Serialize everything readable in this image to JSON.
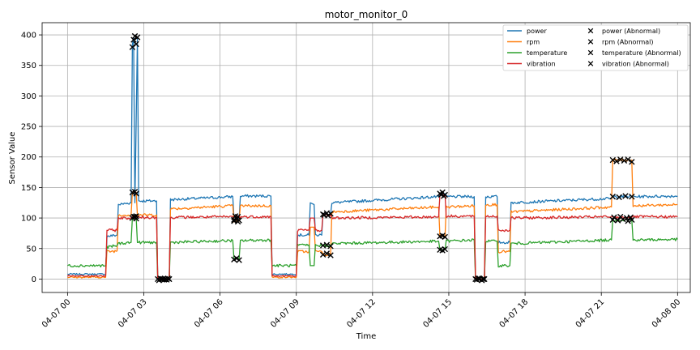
{
  "chart_data": {
    "type": "line",
    "title": "motor_monitor_0",
    "xlabel": "Time",
    "ylabel": "Sensor Value",
    "xlim": [
      -1.0,
      24.5
    ],
    "ylim": [
      -22,
      420
    ],
    "grid": true,
    "legend_placement": "top-right",
    "x_ticks": [
      {
        "value": 0,
        "label": "04-07 00"
      },
      {
        "value": 3,
        "label": "04-07 03"
      },
      {
        "value": 6,
        "label": "04-07 06"
      },
      {
        "value": 9,
        "label": "04-07 09"
      },
      {
        "value": 12,
        "label": "04-07 12"
      },
      {
        "value": 15,
        "label": "04-07 15"
      },
      {
        "value": 18,
        "label": "04-07 18"
      },
      {
        "value": 21,
        "label": "04-07 21"
      },
      {
        "value": 24,
        "label": "04-08 00"
      }
    ],
    "y_ticks": [
      0,
      50,
      100,
      150,
      200,
      250,
      300,
      350,
      400
    ],
    "series": [
      {
        "name": "power",
        "color": "#1f77b4",
        "points": [
          [
            0,
            8
          ],
          [
            1.5,
            8
          ],
          [
            1.55,
            70
          ],
          [
            1.95,
            72
          ],
          [
            2.0,
            122
          ],
          [
            2.5,
            125
          ],
          [
            2.55,
            385
          ],
          [
            2.6,
            395
          ],
          [
            2.65,
            125
          ],
          [
            2.75,
            395
          ],
          [
            2.8,
            128
          ],
          [
            3.5,
            128
          ],
          [
            3.55,
            0
          ],
          [
            4.0,
            0
          ],
          [
            4.05,
            130
          ],
          [
            6.5,
            135
          ],
          [
            6.55,
            98
          ],
          [
            6.75,
            98
          ],
          [
            6.8,
            136
          ],
          [
            8.0,
            136
          ],
          [
            8.05,
            8
          ],
          [
            9.0,
            8
          ],
          [
            9.05,
            72
          ],
          [
            9.5,
            72
          ],
          [
            9.55,
            125
          ],
          [
            9.7,
            122
          ],
          [
            9.75,
            72
          ],
          [
            10.0,
            72
          ],
          [
            10.05,
            107
          ],
          [
            10.35,
            107
          ],
          [
            10.4,
            125
          ],
          [
            14.6,
            135
          ],
          [
            14.65,
            140
          ],
          [
            14.85,
            140
          ],
          [
            14.9,
            135
          ],
          [
            16.0,
            135
          ],
          [
            16.05,
            0
          ],
          [
            16.4,
            0
          ],
          [
            16.45,
            135
          ],
          [
            16.9,
            135
          ],
          [
            16.95,
            60
          ],
          [
            17.4,
            60
          ],
          [
            17.45,
            125
          ],
          [
            21.4,
            132
          ],
          [
            21.45,
            135
          ],
          [
            22.2,
            135
          ],
          [
            22.25,
            135
          ],
          [
            24,
            136
          ]
        ]
      },
      {
        "name": "rpm",
        "color": "#ff7f0e",
        "points": [
          [
            0,
            3
          ],
          [
            1.5,
            3
          ],
          [
            1.55,
            45
          ],
          [
            1.95,
            46
          ],
          [
            2.0,
            105
          ],
          [
            2.5,
            105
          ],
          [
            2.55,
            142
          ],
          [
            2.7,
            142
          ],
          [
            2.75,
            105
          ],
          [
            3.5,
            105
          ],
          [
            3.55,
            0
          ],
          [
            4.0,
            0
          ],
          [
            4.05,
            115
          ],
          [
            6.5,
            120
          ],
          [
            6.55,
            95
          ],
          [
            6.75,
            95
          ],
          [
            6.8,
            120
          ],
          [
            8.0,
            120
          ],
          [
            8.05,
            3
          ],
          [
            9.0,
            3
          ],
          [
            9.05,
            45
          ],
          [
            9.5,
            45
          ],
          [
            9.55,
            85
          ],
          [
            9.7,
            85
          ],
          [
            9.75,
            45
          ],
          [
            10.0,
            45
          ],
          [
            10.05,
            40
          ],
          [
            10.35,
            40
          ],
          [
            10.4,
            110
          ],
          [
            14.6,
            118
          ],
          [
            14.65,
            70
          ],
          [
            14.85,
            70
          ],
          [
            14.9,
            118
          ],
          [
            16.0,
            120
          ],
          [
            16.05,
            0
          ],
          [
            16.4,
            0
          ],
          [
            16.45,
            122
          ],
          [
            16.9,
            122
          ],
          [
            16.95,
            45
          ],
          [
            17.4,
            45
          ],
          [
            17.45,
            110
          ],
          [
            21.4,
            118
          ],
          [
            21.45,
            195
          ],
          [
            22.2,
            195
          ],
          [
            22.25,
            120
          ],
          [
            24,
            122
          ]
        ]
      },
      {
        "name": "temperature",
        "color": "#2ca02c",
        "points": [
          [
            0,
            22
          ],
          [
            1.5,
            22
          ],
          [
            1.55,
            52
          ],
          [
            1.95,
            55
          ],
          [
            2.0,
            58
          ],
          [
            2.5,
            60
          ],
          [
            2.55,
            100
          ],
          [
            2.7,
            100
          ],
          [
            2.75,
            60
          ],
          [
            3.5,
            60
          ],
          [
            3.55,
            0
          ],
          [
            4.0,
            0
          ],
          [
            4.05,
            60
          ],
          [
            6.5,
            63
          ],
          [
            6.55,
            32
          ],
          [
            6.75,
            32
          ],
          [
            6.8,
            63
          ],
          [
            8.0,
            64
          ],
          [
            8.05,
            22
          ],
          [
            9.0,
            22
          ],
          [
            9.05,
            55
          ],
          [
            9.5,
            56
          ],
          [
            9.55,
            22
          ],
          [
            9.7,
            22
          ],
          [
            9.75,
            55
          ],
          [
            10.0,
            55
          ],
          [
            10.05,
            55
          ],
          [
            10.35,
            55
          ],
          [
            10.4,
            58
          ],
          [
            14.6,
            62
          ],
          [
            14.65,
            48
          ],
          [
            14.85,
            48
          ],
          [
            14.9,
            62
          ],
          [
            16.0,
            64
          ],
          [
            16.05,
            0
          ],
          [
            16.4,
            0
          ],
          [
            16.45,
            62
          ],
          [
            16.9,
            62
          ],
          [
            16.95,
            22
          ],
          [
            17.4,
            22
          ],
          [
            17.45,
            58
          ],
          [
            21.4,
            64
          ],
          [
            21.45,
            97
          ],
          [
            22.2,
            97
          ],
          [
            22.25,
            64
          ],
          [
            24,
            65
          ]
        ]
      },
      {
        "name": "vibration",
        "color": "#d62728",
        "points": [
          [
            0,
            5
          ],
          [
            1.5,
            5
          ],
          [
            1.55,
            80
          ],
          [
            1.95,
            80
          ],
          [
            2.0,
            100
          ],
          [
            2.5,
            100
          ],
          [
            2.55,
            102
          ],
          [
            2.7,
            102
          ],
          [
            2.75,
            101
          ],
          [
            3.5,
            101
          ],
          [
            3.55,
            0
          ],
          [
            4.0,
            0
          ],
          [
            4.05,
            101
          ],
          [
            6.5,
            102
          ],
          [
            6.55,
            103
          ],
          [
            6.75,
            103
          ],
          [
            6.8,
            102
          ],
          [
            8.0,
            102
          ],
          [
            8.05,
            5
          ],
          [
            9.0,
            5
          ],
          [
            9.05,
            80
          ],
          [
            9.5,
            80
          ],
          [
            9.55,
            100
          ],
          [
            9.7,
            100
          ],
          [
            9.75,
            80
          ],
          [
            10.0,
            80
          ],
          [
            10.05,
            105
          ],
          [
            10.35,
            105
          ],
          [
            10.4,
            100
          ],
          [
            14.6,
            102
          ],
          [
            14.65,
            138
          ],
          [
            14.85,
            138
          ],
          [
            14.9,
            103
          ],
          [
            16.0,
            103
          ],
          [
            16.05,
            0
          ],
          [
            16.4,
            0
          ],
          [
            16.45,
            103
          ],
          [
            16.9,
            103
          ],
          [
            16.95,
            80
          ],
          [
            17.4,
            80
          ],
          [
            17.45,
            100
          ],
          [
            21.4,
            102
          ],
          [
            21.45,
            101
          ],
          [
            22.2,
            101
          ],
          [
            22.25,
            102
          ],
          [
            24,
            102
          ]
        ]
      }
    ],
    "abnormal_series": [
      {
        "name": "power (Abnormal)",
        "points": [
          [
            2.55,
            380
          ],
          [
            2.6,
            392
          ],
          [
            2.65,
            398
          ],
          [
            2.7,
            385
          ],
          [
            2.75,
            396
          ],
          [
            3.55,
            0
          ],
          [
            3.7,
            0
          ],
          [
            3.85,
            0
          ],
          [
            4.0,
            0
          ],
          [
            6.55,
            97
          ],
          [
            6.65,
            99
          ],
          [
            6.75,
            96
          ],
          [
            10.05,
            106
          ],
          [
            10.2,
            108
          ],
          [
            10.35,
            107
          ],
          [
            14.65,
            140
          ],
          [
            14.75,
            142
          ],
          [
            14.85,
            138
          ],
          [
            16.05,
            0
          ],
          [
            16.2,
            0
          ],
          [
            16.4,
            0
          ],
          [
            21.45,
            135
          ],
          [
            21.7,
            134
          ],
          [
            21.95,
            136
          ],
          [
            22.2,
            135
          ]
        ]
      },
      {
        "name": "rpm (Abnormal)",
        "points": [
          [
            2.55,
            142
          ],
          [
            2.65,
            143
          ],
          [
            2.7,
            140
          ],
          [
            3.6,
            -2
          ],
          [
            3.8,
            -1
          ],
          [
            6.55,
            95
          ],
          [
            6.7,
            94
          ],
          [
            10.05,
            40
          ],
          [
            10.2,
            42
          ],
          [
            10.35,
            39
          ],
          [
            14.65,
            70
          ],
          [
            14.75,
            71
          ],
          [
            14.85,
            69
          ],
          [
            16.1,
            -1
          ],
          [
            16.3,
            -2
          ],
          [
            21.45,
            195
          ],
          [
            21.6,
            193
          ],
          [
            21.75,
            196
          ],
          [
            21.9,
            194
          ],
          [
            22.05,
            196
          ],
          [
            22.2,
            192
          ]
        ]
      },
      {
        "name": "temperature (Abnormal)",
        "points": [
          [
            2.55,
            100
          ],
          [
            2.65,
            102
          ],
          [
            2.7,
            99
          ],
          [
            3.65,
            1
          ],
          [
            3.9,
            -1
          ],
          [
            6.55,
            32
          ],
          [
            6.65,
            34
          ],
          [
            6.75,
            31
          ],
          [
            10.05,
            55
          ],
          [
            10.2,
            56
          ],
          [
            10.35,
            54
          ],
          [
            14.65,
            48
          ],
          [
            14.75,
            47
          ],
          [
            14.85,
            49
          ],
          [
            16.15,
            1
          ],
          [
            16.35,
            0
          ],
          [
            21.45,
            97
          ],
          [
            21.65,
            96
          ],
          [
            21.85,
            98
          ],
          [
            22.05,
            95
          ],
          [
            22.2,
            97
          ]
        ]
      },
      {
        "name": "vibration (Abnormal)",
        "points": [
          [
            2.6,
            102
          ],
          [
            2.7,
            103
          ],
          [
            3.75,
            0
          ],
          [
            3.95,
            1
          ],
          [
            6.6,
            103
          ],
          [
            6.7,
            102
          ],
          [
            10.1,
            105
          ],
          [
            10.25,
            104
          ],
          [
            14.7,
            138
          ],
          [
            14.8,
            136
          ],
          [
            16.2,
            1
          ],
          [
            16.35,
            0
          ],
          [
            21.5,
            101
          ],
          [
            21.75,
            102
          ],
          [
            22.0,
            100
          ],
          [
            22.15,
            101
          ]
        ]
      }
    ]
  }
}
